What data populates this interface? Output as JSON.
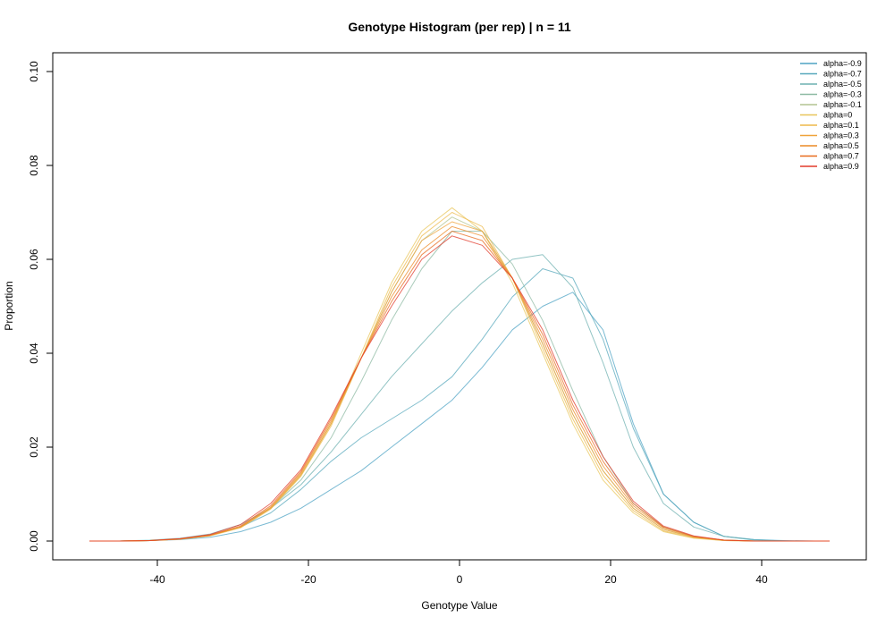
{
  "chart_data": {
    "type": "line",
    "title": "Genotype Histogram (per rep) | n = 11",
    "xlabel": "Genotype Value",
    "ylabel": "Proportion",
    "xlim": [
      -49,
      49
    ],
    "ylim": [
      0,
      0.1
    ],
    "x_ticks": [
      -40,
      -20,
      0,
      20,
      40
    ],
    "x_tick_labels": [
      "-40",
      "-20",
      "0",
      "20",
      "40"
    ],
    "y_ticks": [
      0,
      0.02,
      0.04,
      0.06,
      0.08,
      0.1
    ],
    "y_tick_labels": [
      "0.00",
      "0.02",
      "0.04",
      "0.06",
      "0.08",
      "0.10"
    ],
    "grid": false,
    "legend_position": "top-right",
    "x": [
      -49,
      -45,
      -41,
      -37,
      -33,
      -29,
      -25,
      -21,
      -17,
      -13,
      -9,
      -5,
      -1,
      3,
      7,
      11,
      15,
      19,
      23,
      27,
      31,
      35,
      39,
      43,
      47,
      49
    ],
    "series": [
      {
        "name": "alpha=-0.9",
        "color": "#4EA3C4",
        "values": [
          0,
          0,
          0.0001,
          0.0003,
          0.0008,
          0.002,
          0.004,
          0.007,
          0.011,
          0.015,
          0.02,
          0.025,
          0.03,
          0.037,
          0.045,
          0.05,
          0.053,
          0.045,
          0.025,
          0.01,
          0.004,
          0.001,
          0.0003,
          0.0001,
          0,
          0
        ]
      },
      {
        "name": "alpha=-0.7",
        "color": "#57A8BC",
        "values": [
          0,
          0,
          0.0001,
          0.0005,
          0.0012,
          0.003,
          0.006,
          0.011,
          0.017,
          0.022,
          0.026,
          0.03,
          0.035,
          0.043,
          0.052,
          0.058,
          0.056,
          0.043,
          0.024,
          0.01,
          0.004,
          0.001,
          0.0003,
          0,
          0,
          0
        ]
      },
      {
        "name": "alpha=-0.5",
        "color": "#6DB0B0",
        "values": [
          0,
          0,
          0.0002,
          0.0006,
          0.0015,
          0.0035,
          0.007,
          0.012,
          0.019,
          0.027,
          0.035,
          0.042,
          0.049,
          0.055,
          0.06,
          0.061,
          0.054,
          0.038,
          0.02,
          0.008,
          0.003,
          0.001,
          0.0002,
          0,
          0,
          0
        ]
      },
      {
        "name": "alpha=-0.3",
        "color": "#8DBAA3",
        "values": [
          0,
          0,
          0.0001,
          0.0005,
          0.0013,
          0.003,
          0.007,
          0.013,
          0.022,
          0.034,
          0.047,
          0.058,
          0.066,
          0.066,
          0.059,
          0.047,
          0.032,
          0.018,
          0.008,
          0.003,
          0.001,
          0.0002,
          0,
          0,
          0,
          0
        ]
      },
      {
        "name": "alpha=-0.1",
        "color": "#B3C490",
        "values": [
          0,
          0,
          0.0001,
          0.0004,
          0.0012,
          0.003,
          0.007,
          0.014,
          0.025,
          0.039,
          0.053,
          0.064,
          0.069,
          0.066,
          0.056,
          0.042,
          0.027,
          0.015,
          0.007,
          0.0025,
          0.0008,
          0.0002,
          0,
          0,
          0,
          0
        ]
      },
      {
        "name": "alpha=0",
        "color": "#E8C55A",
        "values": [
          0,
          0,
          0.0001,
          0.0004,
          0.0012,
          0.003,
          0.007,
          0.014,
          0.025,
          0.04,
          0.055,
          0.066,
          0.071,
          0.066,
          0.055,
          0.04,
          0.025,
          0.013,
          0.006,
          0.002,
          0.0006,
          0.0001,
          0,
          0,
          0,
          0
        ]
      },
      {
        "name": "alpha=0.1",
        "color": "#EDB94A",
        "values": [
          0,
          0,
          0.0001,
          0.0004,
          0.0011,
          0.0028,
          0.0068,
          0.0138,
          0.0245,
          0.039,
          0.054,
          0.065,
          0.07,
          0.067,
          0.056,
          0.041,
          0.026,
          0.014,
          0.0065,
          0.0022,
          0.0007,
          0.0001,
          0,
          0,
          0,
          0
        ]
      },
      {
        "name": "alpha=0.3",
        "color": "#EFA33A",
        "values": [
          0,
          0,
          0.0001,
          0.0004,
          0.0012,
          0.003,
          0.007,
          0.0142,
          0.025,
          0.039,
          0.053,
          0.064,
          0.068,
          0.066,
          0.056,
          0.042,
          0.027,
          0.015,
          0.007,
          0.0025,
          0.0008,
          0.0002,
          0,
          0,
          0,
          0
        ]
      },
      {
        "name": "alpha=0.5",
        "color": "#EC8A25",
        "values": [
          0,
          0,
          0.0001,
          0.0004,
          0.0012,
          0.003,
          0.0072,
          0.0145,
          0.0255,
          0.039,
          0.052,
          0.062,
          0.067,
          0.065,
          0.056,
          0.043,
          0.028,
          0.016,
          0.0075,
          0.0028,
          0.0009,
          0.0002,
          0,
          0,
          0,
          0
        ]
      },
      {
        "name": "alpha=0.7",
        "color": "#E86A1C",
        "values": [
          0,
          0,
          0.0001,
          0.0005,
          0.0013,
          0.0032,
          0.0075,
          0.0148,
          0.026,
          0.039,
          0.051,
          0.061,
          0.066,
          0.064,
          0.056,
          0.044,
          0.029,
          0.017,
          0.008,
          0.003,
          0.001,
          0.0002,
          0,
          0,
          0,
          0
        ]
      },
      {
        "name": "alpha=0.9",
        "color": "#E23A2A",
        "values": [
          0,
          0,
          0.0001,
          0.0005,
          0.0014,
          0.0035,
          0.008,
          0.0152,
          0.0265,
          0.039,
          0.05,
          0.06,
          0.065,
          0.063,
          0.056,
          0.045,
          0.03,
          0.018,
          0.0085,
          0.0032,
          0.0011,
          0.0002,
          0,
          0,
          0,
          0
        ]
      }
    ]
  }
}
